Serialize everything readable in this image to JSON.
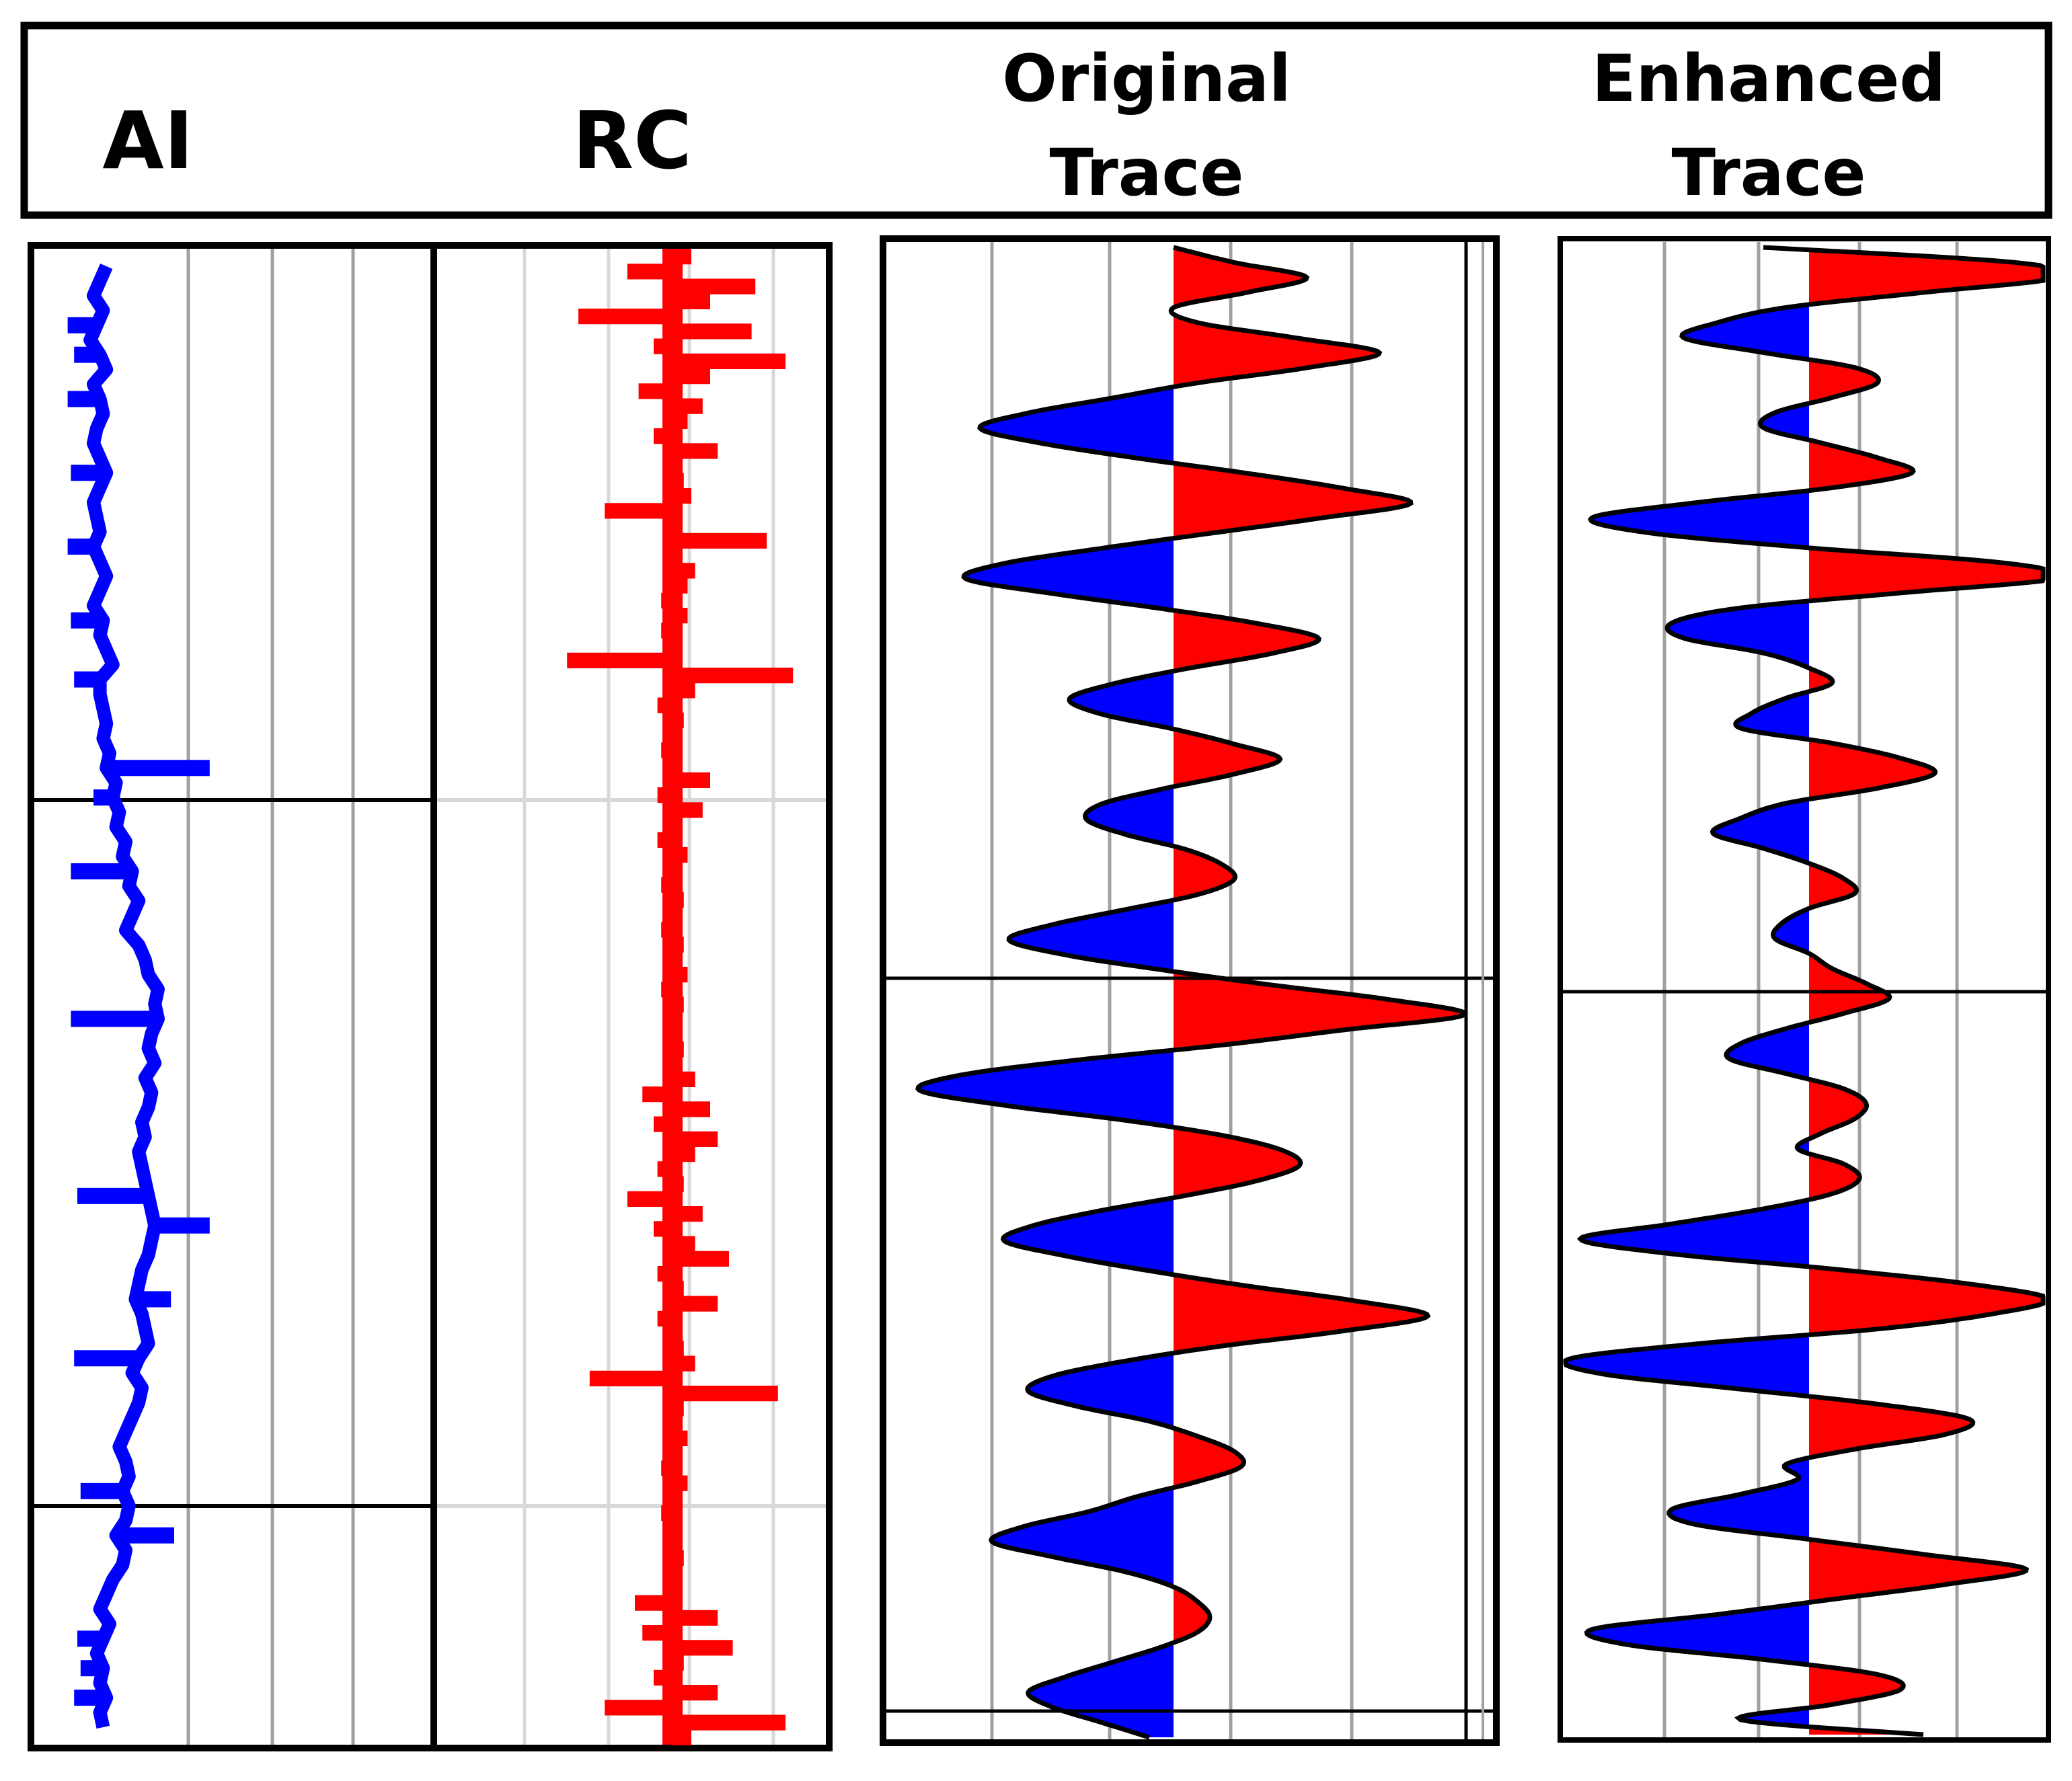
{
  "colors": {
    "ai_line": "#0000ff",
    "rc_bar": "#ff0000",
    "positive_fill": "#ff0000",
    "negative_fill": "#0000ff",
    "frame": "#000000",
    "grid": "#a0a0a0",
    "grid_light": "#d8d8d8"
  },
  "chart_data": [
    {
      "type": "line",
      "title": "AI",
      "xlabel": "",
      "ylabel": "",
      "grid": true,
      "depth_samples": 100,
      "values": [
        0.14,
        0.12,
        0.1,
        0.13,
        0.11,
        0.09,
        0.12,
        0.14,
        0.1,
        0.12,
        0.13,
        0.11,
        0.1,
        0.12,
        0.14,
        0.12,
        0.1,
        0.11,
        0.12,
        0.1,
        0.12,
        0.14,
        0.12,
        0.1,
        0.13,
        0.12,
        0.14,
        0.16,
        0.12,
        0.12,
        0.13,
        0.14,
        0.13,
        0.15,
        0.14,
        0.17,
        0.16,
        0.18,
        0.17,
        0.2,
        0.19,
        0.22,
        0.21,
        0.24,
        0.22,
        0.2,
        0.24,
        0.26,
        0.27,
        0.3,
        0.29,
        0.3,
        0.28,
        0.27,
        0.29,
        0.26,
        0.28,
        0.27,
        0.25,
        0.26,
        0.24,
        0.25,
        0.26,
        0.27,
        0.28,
        0.29,
        0.28,
        0.27,
        0.25,
        0.24,
        0.23,
        0.25,
        0.26,
        0.27,
        0.24,
        0.22,
        0.25,
        0.24,
        0.22,
        0.2,
        0.18,
        0.2,
        0.21,
        0.19,
        0.21,
        0.2,
        0.17,
        0.2,
        0.19,
        0.16,
        0.14,
        0.12,
        0.15,
        0.13,
        0.11,
        0.13,
        0.12,
        0.14,
        0.12,
        0.13
      ],
      "spikes": [
        {
          "depth": 4,
          "value": 0.02
        },
        {
          "depth": 6,
          "value": 0.04
        },
        {
          "depth": 9,
          "value": 0.02
        },
        {
          "depth": 14,
          "value": 0.03
        },
        {
          "depth": 19,
          "value": 0.02
        },
        {
          "depth": 24,
          "value": 0.03
        },
        {
          "depth": 28,
          "value": 0.04
        },
        {
          "depth": 34,
          "value": 0.46
        },
        {
          "depth": 36,
          "value": 0.1
        },
        {
          "depth": 41,
          "value": 0.03
        },
        {
          "depth": 51,
          "value": 0.03
        },
        {
          "depth": 63,
          "value": 0.05
        },
        {
          "depth": 65,
          "value": 0.46
        },
        {
          "depth": 70,
          "value": 0.34
        },
        {
          "depth": 74,
          "value": 0.04
        },
        {
          "depth": 83,
          "value": 0.06
        },
        {
          "depth": 86,
          "value": 0.35
        },
        {
          "depth": 93,
          "value": 0.05
        },
        {
          "depth": 95,
          "value": 0.06
        },
        {
          "depth": 97,
          "value": 0.04
        }
      ]
    },
    {
      "type": "bar",
      "title": "RC",
      "xlabel": "",
      "ylabel": "",
      "grid": true,
      "xlim": [
        -1,
        1
      ],
      "depth_samples": 100,
      "values": [
        0.05,
        -0.12,
        0.22,
        0.1,
        -0.25,
        0.21,
        -0.05,
        0.3,
        0.1,
        -0.09,
        0.08,
        0.04,
        -0.05,
        0.12,
        -0.02,
        0.03,
        0.05,
        -0.18,
        0.02,
        0.25,
        -0.02,
        0.06,
        0.04,
        -0.03,
        0.04,
        -0.03,
        0.02,
        -0.28,
        0.32,
        0.06,
        -0.04,
        0.03,
        0.02,
        -0.03,
        0.02,
        0.1,
        -0.04,
        0.08,
        0.02,
        -0.04,
        0.04,
        0.02,
        -0.03,
        0.03,
        0.02,
        -0.03,
        0.03,
        -0.02,
        0.04,
        -0.03,
        0.03,
        -0.02,
        0.02,
        0.03,
        -0.02,
        0.06,
        -0.08,
        0.1,
        -0.05,
        0.12,
        0.06,
        -0.04,
        0.03,
        -0.12,
        0.08,
        -0.05,
        0.06,
        0.15,
        -0.04,
        0.03,
        0.12,
        -0.04,
        -0.02,
        0.03,
        0.06,
        -0.22,
        0.28,
        0.03,
        -0.02,
        0.04,
        0.02,
        -0.03,
        0.04,
        0.02,
        -0.03,
        0.02,
        -0.02,
        0.03,
        -0.02,
        0.02,
        -0.1,
        0.12,
        -0.08,
        0.16,
        0.03,
        -0.05,
        0.12,
        -0.18,
        0.3,
        0.05
      ]
    },
    {
      "type": "area",
      "title": "Original Trace",
      "xlabel": "",
      "ylabel": "",
      "grid": true,
      "xlim": [
        -1,
        1
      ],
      "depth_samples": 100,
      "values": [
        0.0,
        0.25,
        0.55,
        0.3,
        0.0,
        0.1,
        0.5,
        0.85,
        0.55,
        0.1,
        -0.25,
        -0.6,
        -0.8,
        -0.55,
        -0.15,
        0.3,
        0.7,
        0.98,
        0.6,
        0.15,
        -0.3,
        -0.7,
        -0.86,
        -0.5,
        -0.05,
        0.35,
        0.6,
        0.4,
        0.05,
        -0.25,
        -0.43,
        -0.3,
        0.0,
        0.25,
        0.44,
        0.25,
        -0.05,
        -0.3,
        -0.36,
        -0.2,
        0.05,
        0.2,
        0.25,
        0.1,
        -0.2,
        -0.5,
        -0.68,
        -0.45,
        -0.05,
        0.4,
        0.9,
        1.2,
        0.7,
        0.2,
        -0.4,
        -0.88,
        -1.05,
        -0.7,
        -0.2,
        0.2,
        0.45,
        0.52,
        0.35,
        0.05,
        -0.3,
        -0.58,
        -0.7,
        -0.45,
        -0.1,
        0.3,
        0.75,
        1.05,
        0.7,
        0.2,
        -0.2,
        -0.5,
        -0.6,
        -0.4,
        -0.1,
        0.1,
        0.25,
        0.28,
        0.1,
        -0.15,
        -0.35,
        -0.62,
        -0.75,
        -0.5,
        -0.2,
        0.0,
        0.1,
        0.15,
        0.1,
        -0.05,
        -0.25,
        -0.45,
        -0.6,
        -0.5,
        -0.3,
        -0.1
      ]
    },
    {
      "type": "area",
      "title": "Enhanced Trace",
      "xlabel": "",
      "ylabel": "",
      "grid": true,
      "xlim": [
        -1,
        1
      ],
      "depth_samples": 100,
      "values": [
        -0.2,
        0.9,
        1.1,
        0.5,
        -0.1,
        -0.4,
        -0.55,
        -0.2,
        0.2,
        0.3,
        0.1,
        -0.15,
        -0.2,
        0.05,
        0.3,
        0.45,
        0.1,
        -0.5,
        -0.95,
        -0.7,
        0.0,
        0.85,
        1.1,
        0.4,
        -0.3,
        -0.6,
        -0.55,
        -0.2,
        0.0,
        0.1,
        -0.1,
        -0.25,
        -0.3,
        0.1,
        0.4,
        0.55,
        0.3,
        -0.1,
        -0.3,
        -0.42,
        -0.2,
        0.0,
        0.15,
        0.2,
        0.0,
        -0.12,
        -0.15,
        0.0,
        0.1,
        0.25,
        0.35,
        0.15,
        -0.1,
        -0.3,
        -0.35,
        -0.1,
        0.15,
        0.25,
        0.2,
        0.05,
        -0.05,
        0.15,
        0.22,
        0.1,
        -0.2,
        -0.6,
        -1.0,
        -0.6,
        0.1,
        0.7,
        1.05,
        0.8,
        0.3,
        -0.5,
        -1.05,
        -0.9,
        -0.3,
        0.3,
        0.7,
        0.6,
        0.2,
        -0.1,
        -0.05,
        -0.3,
        -0.6,
        -0.5,
        0.0,
        0.5,
        0.95,
        0.6,
        0.1,
        -0.4,
        -0.95,
        -0.8,
        -0.2,
        0.3,
        0.4,
        0.1,
        -0.3,
        0.5
      ]
    }
  ]
}
